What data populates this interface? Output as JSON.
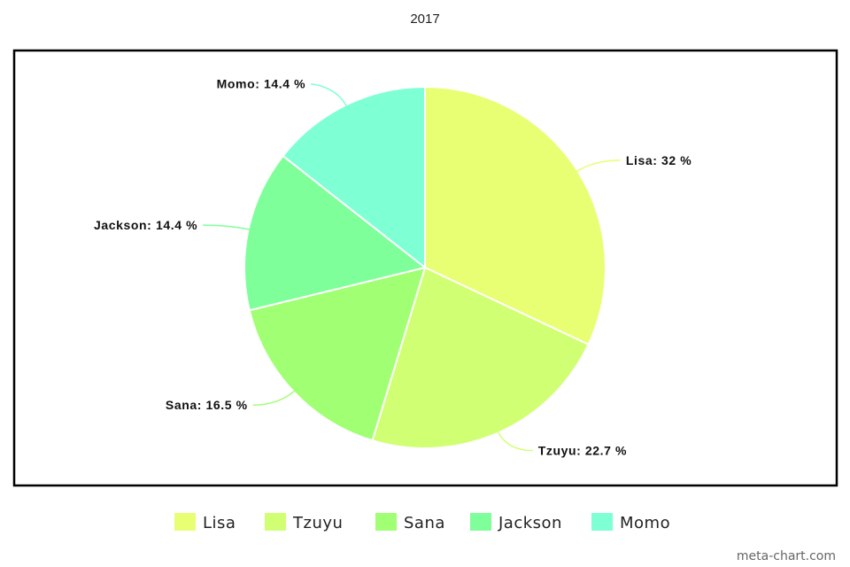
{
  "watermark": "meta-chart.com",
  "chart_data": {
    "type": "pie",
    "title": "2017",
    "categories": [
      "Lisa",
      "Tzuyu",
      "Sana",
      "Jackson",
      "Momo"
    ],
    "values": [
      32,
      22.7,
      16.5,
      14.4,
      14.4
    ],
    "labels": [
      "Lisa: 32 %",
      "Tzuyu: 22.7 %",
      "Sana: 16.5 %",
      "Jackson: 14.4 %",
      "Momo: 14.4 %"
    ],
    "colors": [
      "#e8ff73",
      "#d1ff73",
      "#a0ff73",
      "#7fff99",
      "#7fffd4"
    ],
    "legend_position": "bottom",
    "start": "top, clockwise"
  }
}
